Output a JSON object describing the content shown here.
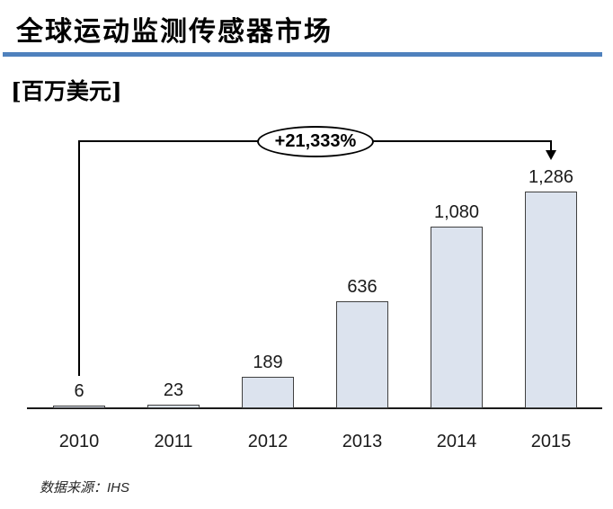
{
  "header": {
    "title": "全球运动监测传感器市场",
    "unit_label": "[百万美元]"
  },
  "annotation": {
    "growth_label": "+21,333%"
  },
  "chart_data": {
    "type": "bar",
    "title": "全球运动监测传感器市场",
    "unit": "百万美元 (Million USD)",
    "categories": [
      "2010",
      "2011",
      "2012",
      "2013",
      "2014",
      "2015"
    ],
    "values": [
      6,
      23,
      189,
      636,
      1080,
      1286
    ],
    "value_labels": [
      "6",
      "23",
      "189",
      "636",
      "1,080",
      "1,286"
    ],
    "annotation": "+21,333%",
    "ylim": [
      0,
      1286
    ],
    "grid": false,
    "legend": false,
    "colors": {
      "bar_fill": "#dce3ee",
      "bar_border": "#404040",
      "divider": "#4f81bd",
      "axis": "#1a1a1a"
    }
  },
  "footer": {
    "source": "数据来源：IHS"
  }
}
